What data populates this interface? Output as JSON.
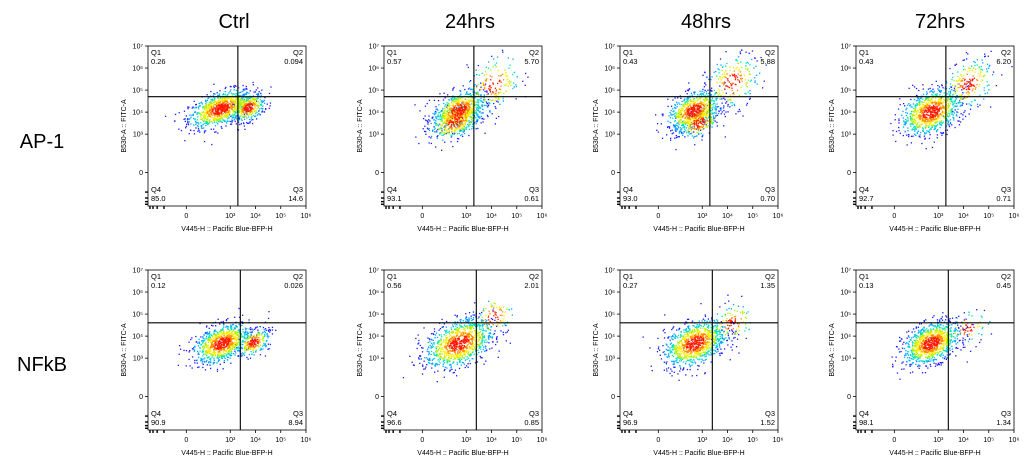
{
  "columns": [
    "Ctrl",
    "24hrs",
    "48hrs",
    "72hrs"
  ],
  "rows": [
    "AP-1",
    "NFkB"
  ],
  "colors": {
    "axis": "#000000",
    "density": [
      "#1a1aff",
      "#00a6ff",
      "#00e0c0",
      "#b4f000",
      "#ffee00",
      "#ff8c00",
      "#ff1a00"
    ]
  },
  "chart_data": [
    {
      "type": "scatter",
      "row": "AP-1",
      "column": "Ctrl",
      "xlabel": "V445-H :: Pacific Blue-BFP-H",
      "ylabel": "B530-A :: FITC-A",
      "x_ticks": [
        "0",
        "10³",
        "10⁴",
        "10⁵",
        "10⁶"
      ],
      "y_ticks": [
        "0",
        "10³",
        "10⁴",
        "10⁵",
        "10⁶",
        "10⁷"
      ],
      "x_scale": "biexponential",
      "y_scale": "biexponential",
      "gate": {
        "x": 2000,
        "y": 50000
      },
      "quadrants": {
        "Q1": "0.26",
        "Q2": "0.094",
        "Q3": "14.6",
        "Q4": "85.0"
      },
      "populations": [
        {
          "x": 400,
          "y": 15000,
          "sx": 0.34,
          "sy": 0.2,
          "n": 900
        },
        {
          "x": 5000,
          "y": 17000,
          "sx": 0.17,
          "sy": 0.16,
          "n": 340
        }
      ]
    },
    {
      "type": "scatter",
      "row": "AP-1",
      "column": "24hrs",
      "xlabel": "V445-H :: Pacific Blue-BFP-H",
      "ylabel": "B530-A :: FITC-A",
      "x_ticks": [
        "0",
        "10³",
        "10⁴",
        "10⁵",
        "10⁶"
      ],
      "y_ticks": [
        "0",
        "10³",
        "10⁴",
        "10⁵",
        "10⁶",
        "10⁷"
      ],
      "x_scale": "biexponential",
      "y_scale": "biexponential",
      "gate": {
        "x": 2000,
        "y": 50000
      },
      "quadrants": {
        "Q1": "0.57",
        "Q2": "5.70",
        "Q3": "0.61",
        "Q4": "93.1"
      },
      "populations": [
        {
          "x": 500,
          "y": 13000,
          "sx": 0.28,
          "sy": 0.22,
          "n": 650
        },
        {
          "x": 350,
          "y": 4000,
          "sx": 0.28,
          "sy": 0.2,
          "n": 420
        },
        {
          "x": 12000,
          "y": 200000,
          "sx": 0.28,
          "sy": 0.32,
          "n": 170
        }
      ]
    },
    {
      "type": "scatter",
      "row": "AP-1",
      "column": "48hrs",
      "xlabel": "V445-H :: Pacific Blue-BFP-H",
      "ylabel": "B530-A :: FITC-A",
      "x_ticks": [
        "0",
        "10³",
        "10⁴",
        "10⁵",
        "10⁶"
      ],
      "y_ticks": [
        "0",
        "10³",
        "10⁴",
        "10⁵",
        "10⁶",
        "10⁷"
      ],
      "x_scale": "biexponential",
      "y_scale": "biexponential",
      "gate": {
        "x": 2000,
        "y": 50000
      },
      "quadrants": {
        "Q1": "0.43",
        "Q2": "5.88",
        "Q3": "0.70",
        "Q4": "93.0"
      },
      "populations": [
        {
          "x": 450,
          "y": 12000,
          "sx": 0.28,
          "sy": 0.22,
          "n": 700
        },
        {
          "x": 700,
          "y": 3500,
          "sx": 0.22,
          "sy": 0.18,
          "n": 250
        },
        {
          "x": 15000,
          "y": 250000,
          "sx": 0.28,
          "sy": 0.32,
          "n": 200
        }
      ]
    },
    {
      "type": "scatter",
      "row": "AP-1",
      "column": "72hrs",
      "xlabel": "V445-H :: Pacific Blue-BFP-H",
      "ylabel": "B530-A :: FITC-A",
      "x_ticks": [
        "0",
        "10³",
        "10⁴",
        "10⁵",
        "10⁶"
      ],
      "y_ticks": [
        "0",
        "10³",
        "10⁴",
        "10⁵",
        "10⁶",
        "10⁷"
      ],
      "x_scale": "biexponential",
      "y_scale": "biexponential",
      "gate": {
        "x": 2000,
        "y": 50000
      },
      "quadrants": {
        "Q1": "0.43",
        "Q2": "6.20",
        "Q3": "0.71",
        "Q4": "92.7"
      },
      "populations": [
        {
          "x": 500,
          "y": 11000,
          "sx": 0.32,
          "sy": 0.26,
          "n": 900
        },
        {
          "x": 15000,
          "y": 200000,
          "sx": 0.26,
          "sy": 0.3,
          "n": 220
        }
      ]
    },
    {
      "type": "scatter",
      "row": "NFkB",
      "column": "Ctrl",
      "xlabel": "V445-H :: Pacific Blue-BFP-H",
      "ylabel": "B530-A :: FITC-A",
      "x_ticks": [
        "0",
        "10³",
        "10⁴",
        "10⁵",
        "10⁶"
      ],
      "y_ticks": [
        "0",
        "10³",
        "10⁴",
        "10⁵",
        "10⁶",
        "10⁷"
      ],
      "x_scale": "biexponential",
      "y_scale": "biexponential",
      "gate": {
        "x": 2500,
        "y": 40000
      },
      "quadrants": {
        "Q1": "0.12",
        "Q2": "0.026",
        "Q3": "8.94",
        "Q4": "90.9"
      },
      "populations": [
        {
          "x": 450,
          "y": 5000,
          "sx": 0.3,
          "sy": 0.22,
          "n": 900
        },
        {
          "x": 8000,
          "y": 5500,
          "sx": 0.17,
          "sy": 0.15,
          "n": 260
        }
      ]
    },
    {
      "type": "scatter",
      "row": "NFkB",
      "column": "24hrs",
      "xlabel": "V445-H :: Pacific Blue-BFP-H",
      "ylabel": "B530-A :: FITC-A",
      "x_ticks": [
        "0",
        "10³",
        "10⁴",
        "10⁵",
        "10⁶"
      ],
      "y_ticks": [
        "0",
        "10³",
        "10⁴",
        "10⁵",
        "10⁶",
        "10⁷"
      ],
      "x_scale": "biexponential",
      "y_scale": "biexponential",
      "gate": {
        "x": 2500,
        "y": 40000
      },
      "quadrants": {
        "Q1": "0.56",
        "Q2": "2.01",
        "Q3": "0.85",
        "Q4": "96.6"
      },
      "populations": [
        {
          "x": 500,
          "y": 5000,
          "sx": 0.36,
          "sy": 0.28,
          "n": 1000
        },
        {
          "x": 12000,
          "y": 80000,
          "sx": 0.22,
          "sy": 0.25,
          "n": 90
        }
      ]
    },
    {
      "type": "scatter",
      "row": "NFkB",
      "column": "48hrs",
      "xlabel": "V445-H :: Pacific Blue-BFP-H",
      "ylabel": "B530-A :: FITC-A",
      "x_ticks": [
        "0",
        "10³",
        "10⁴",
        "10⁵",
        "10⁶"
      ],
      "y_ticks": [
        "0",
        "10³",
        "10⁴",
        "10⁵",
        "10⁶",
        "10⁷"
      ],
      "x_scale": "biexponential",
      "y_scale": "biexponential",
      "gate": {
        "x": 2500,
        "y": 40000
      },
      "quadrants": {
        "Q1": "0.27",
        "Q2": "1.35",
        "Q3": "1.52",
        "Q4": "96.9"
      },
      "populations": [
        {
          "x": 500,
          "y": 5000,
          "sx": 0.33,
          "sy": 0.26,
          "n": 1000
        },
        {
          "x": 15000,
          "y": 40000,
          "sx": 0.24,
          "sy": 0.22,
          "n": 110
        }
      ]
    },
    {
      "type": "scatter",
      "row": "NFkB",
      "column": "72hrs",
      "xlabel": "V445-H :: Pacific Blue-BFP-H",
      "ylabel": "B530-A :: FITC-A",
      "x_ticks": [
        "0",
        "10³",
        "10⁴",
        "10⁵",
        "10⁶"
      ],
      "y_ticks": [
        "0",
        "10³",
        "10⁴",
        "10⁵",
        "10⁶",
        "10⁷"
      ],
      "x_scale": "biexponential",
      "y_scale": "biexponential",
      "gate": {
        "x": 2500,
        "y": 40000
      },
      "quadrants": {
        "Q1": "0.13",
        "Q2": "0.45",
        "Q3": "1.34",
        "Q4": "98.1"
      },
      "populations": [
        {
          "x": 500,
          "y": 5000,
          "sx": 0.3,
          "sy": 0.24,
          "n": 1000
        },
        {
          "x": 15000,
          "y": 25000,
          "sx": 0.22,
          "sy": 0.2,
          "n": 60
        }
      ]
    }
  ]
}
